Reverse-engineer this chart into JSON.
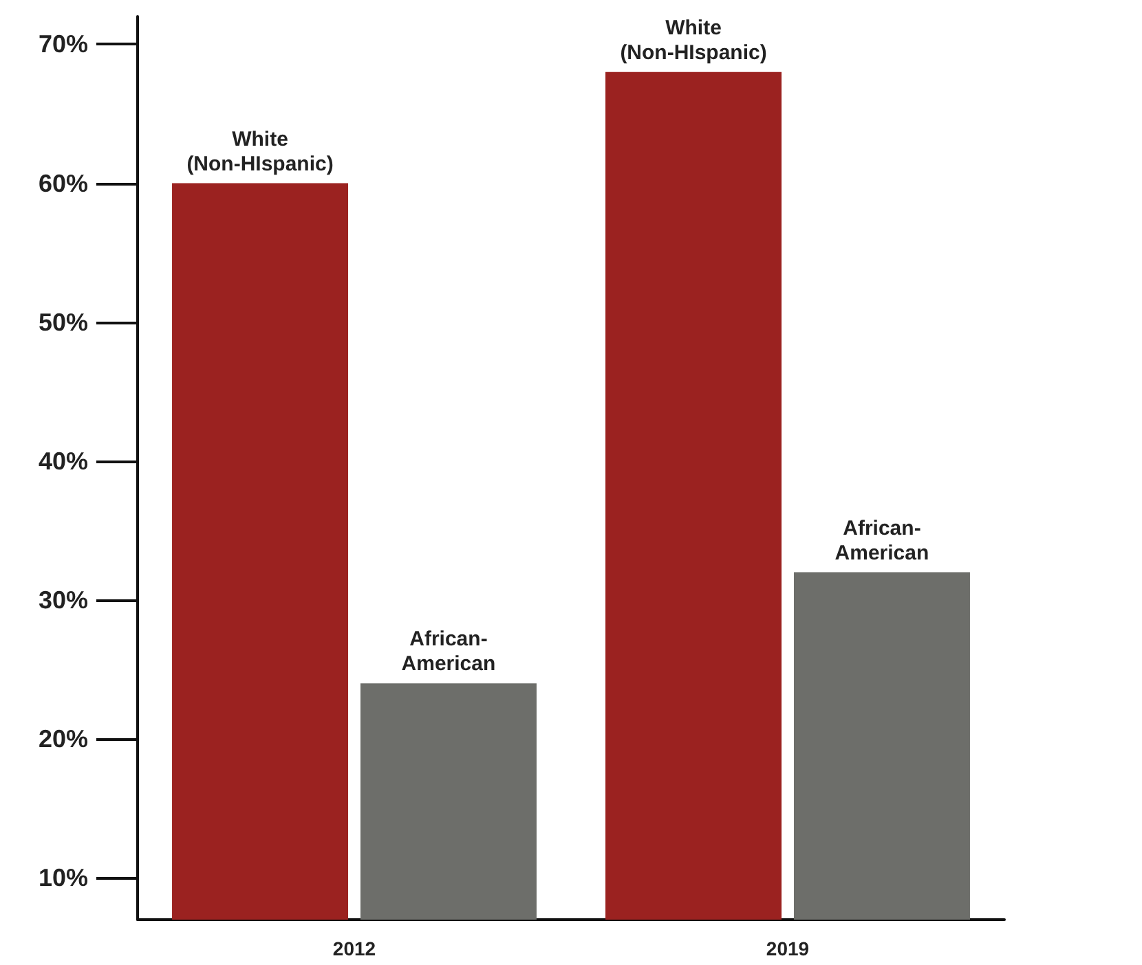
{
  "chart_data": {
    "type": "bar",
    "categories": [
      "2012",
      "2019"
    ],
    "series": [
      {
        "name": "White (Non-HIspanic)",
        "color": "#9b2220",
        "values": [
          60,
          68
        ]
      },
      {
        "name": "African-American",
        "color": "#6d6e6a",
        "values": [
          24,
          32
        ]
      }
    ],
    "ylim": [
      7,
      72
    ],
    "yticks": [
      {
        "value": 10,
        "label": "10%"
      },
      {
        "value": 20,
        "label": "20%"
      },
      {
        "value": 30,
        "label": "30%"
      },
      {
        "value": 40,
        "label": "40%"
      },
      {
        "value": 50,
        "label": "50%"
      },
      {
        "value": 60,
        "label": "60%"
      },
      {
        "value": 70,
        "label": "70%"
      }
    ],
    "grid": false,
    "legend": false
  }
}
